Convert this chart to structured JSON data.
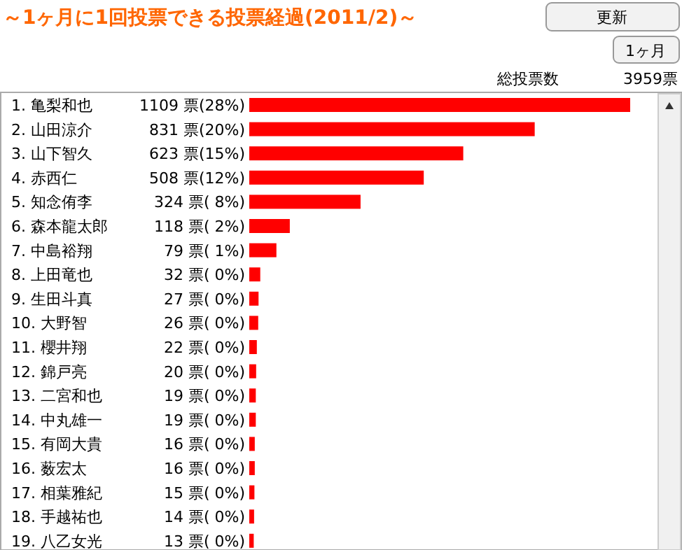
{
  "chart_data": {
    "type": "bar",
    "orientation": "horizontal",
    "title": "～1ヶ月に1回投票できる投票経過(2011/2)～",
    "annotations": [
      "更新",
      "1ヶ月",
      "総投票数",
      "3959票"
    ],
    "categories": [
      "1. 亀梨和也",
      "2. 山田涼介",
      "3. 山下智久",
      "4. 赤西仁",
      "5. 知念侑李",
      "6. 森本龍太郎",
      "7. 中島裕翔",
      "8. 上田竜也",
      "9. 生田斗真",
      "10. 大野智",
      "11. 櫻井翔",
      "12. 錦戸亮",
      "13. 二宮和也",
      "14. 中丸雄一",
      "15. 有岡大貴",
      "16. 薮宏太",
      "17. 相葉雅紀",
      "18. 手越祐也",
      "19. 八乙女光"
    ],
    "values": [
      1109,
      831,
      623,
      508,
      324,
      118,
      79,
      32,
      27,
      26,
      22,
      20,
      19,
      19,
      16,
      16,
      15,
      14,
      13
    ],
    "value_labels": [
      "1109 票(28%)",
      "831 票(20%)",
      "623 票(15%)",
      "508 票(12%)",
      "324 票( 8%)",
      "118 票( 2%)",
      "79 票( 1%)",
      "32 票( 0%)",
      "27 票( 0%)",
      "26 票( 0%)",
      "22 票( 0%)",
      "20 票( 0%)",
      "19 票( 0%)",
      "19 票( 0%)",
      "16 票( 0%)",
      "16 票( 0%)",
      "15 票( 0%)",
      "14 票( 0%)",
      "13 票( 0%)"
    ],
    "color": "#ff0000"
  }
}
